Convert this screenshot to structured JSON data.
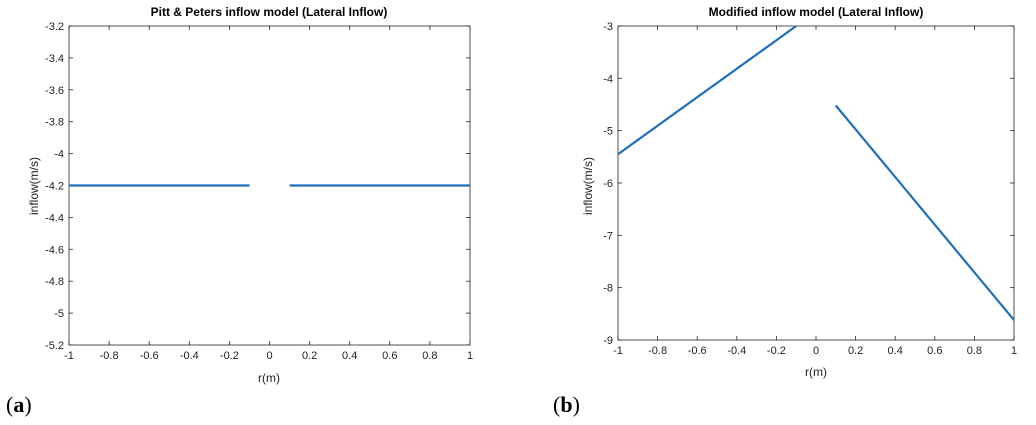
{
  "chart_data": [
    {
      "type": "line",
      "panel": "a",
      "title": "Pitt & Peters inflow model (Lateral Inflow)",
      "xlabel": "r(m)",
      "ylabel": "inflow(m/s)",
      "xlim": [
        -1,
        1
      ],
      "ylim": [
        -5.2,
        -3.2
      ],
      "xticks": [
        "-1",
        "-0.8",
        "-0.6",
        "-0.4",
        "-0.2",
        "0",
        "0.2",
        "0.4",
        "0.6",
        "0.8",
        "1"
      ],
      "yticks": [
        "-3.2",
        "-3.4",
        "-3.6",
        "-3.8",
        "-4",
        "-4.2",
        "-4.4",
        "-4.6",
        "-4.8",
        "-5",
        "-5.2"
      ],
      "grid": false,
      "color": "#1f6fb8",
      "segments": [
        {
          "x": [
            -1,
            -0.1
          ],
          "y": [
            -4.2,
            -4.2
          ]
        },
        {
          "x": [
            0.1,
            1
          ],
          "y": [
            -4.2,
            -4.2
          ]
        }
      ]
    },
    {
      "type": "line",
      "panel": "b",
      "title": "Modified inflow model (Lateral Inflow)",
      "xlabel": "r(m)",
      "ylabel": "inflow(m/s)",
      "xlim": [
        -1,
        1
      ],
      "ylim": [
        -9,
        -3
      ],
      "xticks": [
        "-1",
        "-0.8",
        "-0.6",
        "-0.4",
        "-0.2",
        "0",
        "0.2",
        "0.4",
        "0.6",
        "0.8",
        "1"
      ],
      "yticks": [
        "-3",
        "-4",
        "-5",
        "-6",
        "-7",
        "-8",
        "-9"
      ],
      "grid": false,
      "color": "#1f6fb8",
      "segments": [
        {
          "x": [
            -1,
            -0.1
          ],
          "y": [
            -5.45,
            -3
          ]
        },
        {
          "x": [
            0.1,
            1
          ],
          "y": [
            -4.52,
            -8.62
          ]
        }
      ]
    }
  ]
}
